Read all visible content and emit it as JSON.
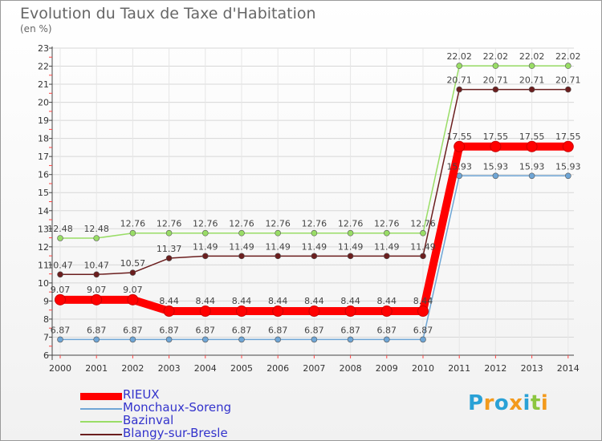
{
  "title": "Evolution du Taux de Taxe d'Habitation",
  "unit": "(en %)",
  "logo": {
    "text": "Proxiti",
    "letters": [
      {
        "ch": "P",
        "color": "#2aa1d6"
      },
      {
        "ch": "r",
        "color": "#f39a1c"
      },
      {
        "ch": "o",
        "color": "#2aa1d6"
      },
      {
        "ch": "x",
        "color": "#f39a1c"
      },
      {
        "ch": "i",
        "color": "#2aa1d6"
      },
      {
        "ch": "t",
        "color": "#8cc63f"
      },
      {
        "ch": "i",
        "color": "#f39a1c"
      }
    ]
  },
  "chart_data": {
    "type": "line",
    "title": "Evolution du Taux de Taxe d'Habitation",
    "ylabel": "(en %)",
    "xlabel": "",
    "x": [
      "2000",
      "2001",
      "2002",
      "2003",
      "2004",
      "2005",
      "2006",
      "2007",
      "2008",
      "2009",
      "2010",
      "2011",
      "2012",
      "2013",
      "2014"
    ],
    "ylim": [
      6,
      23
    ],
    "yticks": [
      6,
      7,
      8,
      9,
      10,
      11,
      12,
      13,
      14,
      15,
      16,
      17,
      18,
      19,
      20,
      21,
      22,
      23
    ],
    "legend_position": "bottom-left",
    "series": [
      {
        "name": "RIEUX",
        "color": "#ff0000",
        "bold": true,
        "values": [
          9.07,
          9.07,
          9.07,
          8.44,
          8.44,
          8.44,
          8.44,
          8.44,
          8.44,
          8.44,
          8.44,
          17.55,
          17.55,
          17.55,
          17.55
        ],
        "labels": [
          "9.07",
          "9.07",
          "9.07",
          "8.44",
          "8.44",
          "8.44",
          "8.44",
          "8.44",
          "8.44",
          "8.44",
          "8.44",
          "17.55",
          "17.55",
          "17.55",
          "17.55"
        ]
      },
      {
        "name": "Monchaux-Soreng",
        "color": "#6fa6d6",
        "values": [
          6.87,
          6.87,
          6.87,
          6.87,
          6.87,
          6.87,
          6.87,
          6.87,
          6.87,
          6.87,
          6.87,
          15.93,
          15.93,
          15.93,
          15.93
        ],
        "labels": [
          "6.87",
          "6.87",
          "6.87",
          "6.87",
          "6.87",
          "6.87",
          "6.87",
          "6.87",
          "6.87",
          "6.87",
          "6.87",
          "15.93",
          "15.93",
          "15.93",
          "15.93"
        ]
      },
      {
        "name": "Bazinval",
        "color": "#99dd66",
        "values": [
          12.48,
          12.48,
          12.76,
          12.76,
          12.76,
          12.76,
          12.76,
          12.76,
          12.76,
          12.76,
          12.76,
          22.02,
          22.02,
          22.02,
          22.02
        ],
        "labels": [
          "12.48",
          "12.48",
          "12.76",
          "12.76",
          "12.76",
          "12.76",
          "12.76",
          "12.76",
          "12.76",
          "12.76",
          "12.76",
          "22.02",
          "22.02",
          "22.02",
          "22.02"
        ]
      },
      {
        "name": "Blangy-sur-Bresle",
        "color": "#6b1e1e",
        "values": [
          10.47,
          10.47,
          10.57,
          11.37,
          11.49,
          11.49,
          11.49,
          11.49,
          11.49,
          11.49,
          11.49,
          20.71,
          20.71,
          20.71,
          20.71
        ],
        "labels": [
          "10.47",
          "10.47",
          "10.57",
          "11.37",
          "11.49",
          "11.49",
          "11.49",
          "11.49",
          "11.49",
          "11.49",
          "11.49",
          "20.71",
          "20.71",
          "20.71",
          "20.71"
        ]
      }
    ]
  }
}
